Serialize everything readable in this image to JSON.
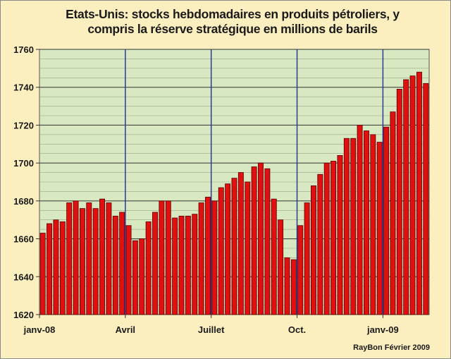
{
  "chart_data": {
    "type": "bar",
    "title_line1": "Etats-Unis: stocks hebdomadaires en produits pétroliers, y",
    "title_line2": "compris la réserve stratégique  en millions de barils",
    "credit": "RayBon Février 2009",
    "ylim": [
      1620,
      1760
    ],
    "yticks": [
      1620,
      1640,
      1660,
      1680,
      1700,
      1720,
      1740,
      1760
    ],
    "xlabels": [
      {
        "label": "janv-08",
        "index": 0
      },
      {
        "label": "Avril",
        "index": 13
      },
      {
        "label": "Juillet",
        "index": 26
      },
      {
        "label": "Oct.",
        "index": 39
      },
      {
        "label": "janv-09",
        "index": 52
      }
    ],
    "bar_color": "#E01010",
    "plot_bg": "#D8E8C0",
    "grid": true,
    "values": [
      1663,
      1668,
      1670,
      1669,
      1679,
      1680,
      1676,
      1679,
      1676,
      1681,
      1679,
      1672,
      1674,
      1667,
      1659,
      1660,
      1669,
      1674,
      1680,
      1680,
      1671,
      1672,
      1672,
      1673,
      1679,
      1682,
      1680,
      1687,
      1689,
      1692,
      1695,
      1690,
      1698,
      1700,
      1697,
      1681,
      1670,
      1650,
      1649,
      1667,
      1679,
      1688,
      1694,
      1700,
      1701,
      1704,
      1713,
      1713,
      1720,
      1717,
      1715,
      1711,
      1719,
      1727,
      1739,
      1744,
      1746,
      1748,
      1742
    ]
  }
}
